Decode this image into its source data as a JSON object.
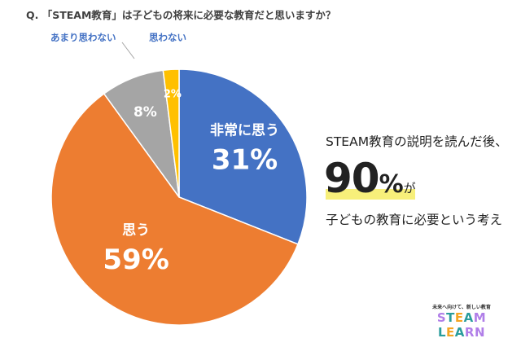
{
  "title": "Q. 「STEAM教育」は子どもの将来に必要な教育だと思いますか？",
  "chart_data": {
    "type": "pie",
    "title": "Q. 「STEAM教育」は子どもの将来に必要な教育だと思いますか？",
    "start": "top",
    "direction": "clockwise",
    "categories": [
      "非常に思う",
      "思う",
      "あまり思わない",
      "思わない"
    ],
    "values": [
      31,
      59,
      8,
      2
    ],
    "labels": [
      "31%",
      "59%",
      "8%",
      "2%"
    ],
    "colors": [
      "#4472c4",
      "#ed7d31",
      "#a5a5a5",
      "#ffc000"
    ]
  },
  "callout": {
    "line1": "STEAM教育の説明を読んだ後、",
    "number": "90",
    "percent": "%",
    "suffix": "が",
    "line3": "子どもの教育に必要という考え"
  },
  "logo": {
    "tagline": "未来へ向けて、新しい教育",
    "name": "STEAM LEARN"
  }
}
